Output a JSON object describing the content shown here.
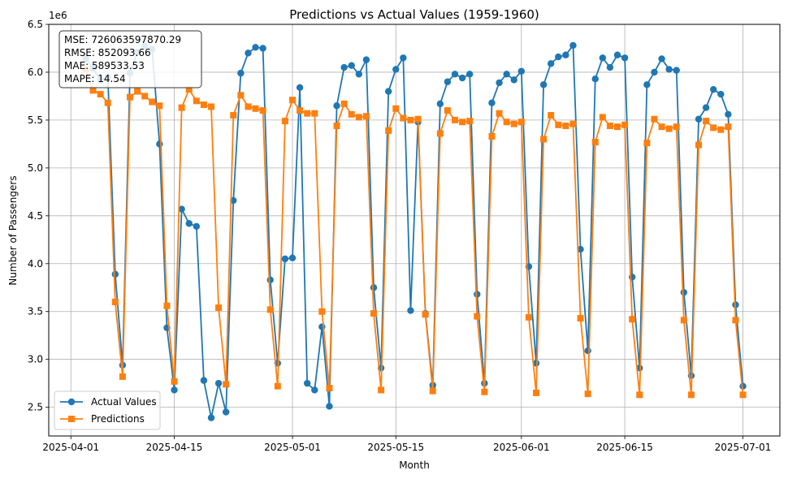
{
  "chart_data": {
    "type": "line",
    "title": "Predictions vs Actual Values (1959-1960)",
    "xlabel": "Month",
    "ylabel": "Number of Passengers",
    "y_offset_label": "1e6",
    "x_start_date": "2025-04-03",
    "x_step_days": 1,
    "xlim": [
      "2025-03-29",
      "2025-07-06"
    ],
    "ylim": [
      2200000,
      6500000
    ],
    "x_ticks": [
      "2025-04-01",
      "2025-04-15",
      "2025-05-01",
      "2025-05-15",
      "2025-06-01",
      "2025-06-15",
      "2025-07-01"
    ],
    "y_ticks": [
      {
        "value": 2500000,
        "label": "2.5"
      },
      {
        "value": 3000000,
        "label": "3.0"
      },
      {
        "value": 3500000,
        "label": "3.5"
      },
      {
        "value": 4000000,
        "label": "4.0"
      },
      {
        "value": 4500000,
        "label": "4.5"
      },
      {
        "value": 5000000,
        "label": "5.0"
      },
      {
        "value": 5500000,
        "label": "5.5"
      },
      {
        "value": 6000000,
        "label": "6.0"
      },
      {
        "value": 6500000,
        "label": "6.5"
      }
    ],
    "grid": true,
    "legend_position": "lower-left",
    "stats_box": [
      "MSE: 726063597870.29",
      "RMSE: 852093.66",
      "MAE: 589533.53",
      "MAPE: 14.54"
    ],
    "series": [
      {
        "name": "Actual Values",
        "color": "#1f77b4",
        "marker": "circle",
        "values": [
          6140000,
          6040000,
          5920000,
          5950000,
          3890000,
          2940000,
          5990000,
          6210000,
          6270000,
          6240000,
          5250000,
          3330000,
          2680000,
          4570000,
          4420000,
          4390000,
          2780000,
          2390000,
          2750000,
          2450000,
          4660000,
          5990000,
          6200000,
          6260000,
          6250000,
          3830000,
          2960000,
          4050000,
          4060000,
          5840000,
          2750000,
          2680000,
          3340000,
          2510000,
          5650000,
          6050000,
          6070000,
          5980000,
          6130000,
          3750000,
          2910000,
          5800000,
          6030000,
          6150000,
          3510000,
          5480000,
          3480000,
          2730000,
          5670000,
          5900000,
          5980000,
          5940000,
          5980000,
          3680000,
          2750000,
          5680000,
          5890000,
          5980000,
          5920000,
          6010000,
          3970000,
          2960000,
          5870000,
          6090000,
          6160000,
          6180000,
          6280000,
          4150000,
          3090000,
          5930000,
          6150000,
          6050000,
          6180000,
          6150000,
          3860000,
          2910000,
          5870000,
          6000000,
          6140000,
          6030000,
          6020000,
          3700000,
          2830000,
          5510000,
          5630000,
          5820000,
          5770000,
          5560000,
          3570000,
          2720000
        ]
      },
      {
        "name": "Predictions",
        "color": "#ff7f0e",
        "marker": "square",
        "values": [
          6030000,
          5810000,
          5770000,
          5680000,
          3600000,
          2820000,
          5740000,
          5800000,
          5750000,
          5690000,
          5650000,
          3560000,
          2770000,
          5630000,
          5820000,
          5700000,
          5660000,
          5640000,
          3540000,
          2740000,
          5550000,
          5760000,
          5640000,
          5620000,
          5600000,
          3520000,
          2720000,
          5490000,
          5710000,
          5600000,
          5570000,
          5570000,
          3500000,
          2700000,
          5440000,
          5670000,
          5560000,
          5530000,
          5540000,
          3480000,
          2680000,
          5390000,
          5620000,
          5520000,
          5500000,
          5510000,
          3470000,
          2670000,
          5360000,
          5600000,
          5500000,
          5480000,
          5490000,
          3450000,
          2660000,
          5330000,
          5570000,
          5480000,
          5460000,
          5480000,
          3440000,
          2650000,
          5300000,
          5550000,
          5450000,
          5440000,
          5460000,
          3430000,
          2640000,
          5270000,
          5530000,
          5440000,
          5430000,
          5450000,
          3420000,
          2630000,
          5260000,
          5510000,
          5430000,
          5410000,
          5430000,
          3410000,
          2630000,
          5240000,
          5490000,
          5420000,
          5400000,
          5430000,
          3410000,
          2630000
        ]
      }
    ]
  }
}
